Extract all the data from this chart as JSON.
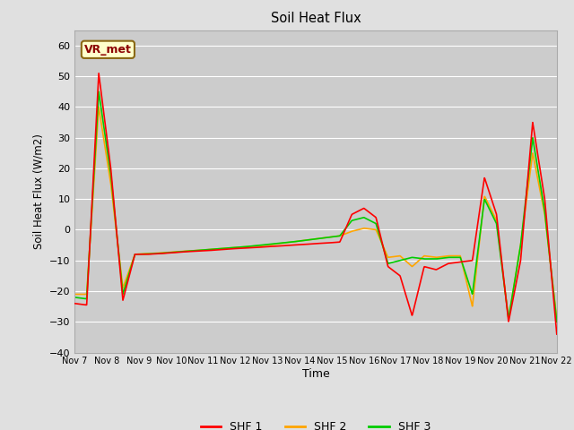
{
  "title": "Soil Heat Flux",
  "ylabel": "Soil Heat Flux (W/m2)",
  "xlabel": "Time",
  "ylim": [
    -40,
    65
  ],
  "yticks": [
    -40,
    -30,
    -20,
    -10,
    0,
    10,
    20,
    30,
    40,
    50,
    60
  ],
  "annotation": "VR_met",
  "fig_bg": "#e0e0e0",
  "plot_bg": "#cccccc",
  "grid_color": "#ffffff",
  "colors": {
    "SHF 1": "#ff0000",
    "SHF 2": "#ffa500",
    "SHF 3": "#00cc00"
  },
  "xtick_labels": [
    "Nov 7",
    "Nov 8",
    "Nov 9",
    "Nov 10",
    "Nov 11",
    "Nov 12",
    "Nov 13",
    "Nov 14",
    "Nov 15",
    "Nov 16",
    "Nov 17",
    "Nov 18",
    "Nov 19",
    "Nov 20",
    "Nov 21",
    "Nov 22"
  ],
  "shf1_pts": [
    -24.0,
    -24.5,
    51.0,
    20.0,
    -23.0,
    -8.0,
    -8.0,
    -7.8,
    -7.5,
    -7.2,
    -7.0,
    -6.8,
    -6.5,
    -6.2,
    -6.0,
    -5.8,
    -5.5,
    -5.3,
    -5.0,
    -4.8,
    -4.5,
    -4.3,
    -4.0,
    5.0,
    7.0,
    4.0,
    -12.0,
    -15.0,
    -28.0,
    -12.0,
    -13.0,
    -11.0,
    -10.5,
    -10.0,
    17.0,
    5.0,
    -30.0,
    -10.0,
    35.0,
    10.0,
    -34.0
  ],
  "shf2_pts": [
    -21.0,
    -21.0,
    40.0,
    15.0,
    -19.0,
    -8.0,
    -7.8,
    -7.6,
    -7.3,
    -7.0,
    -6.8,
    -6.5,
    -6.2,
    -5.9,
    -5.6,
    -5.3,
    -5.0,
    -4.5,
    -4.0,
    -3.5,
    -3.0,
    -2.5,
    -2.0,
    -0.5,
    0.5,
    0.0,
    -9.0,
    -8.5,
    -12.0,
    -8.5,
    -9.0,
    -8.5,
    -8.5,
    -25.0,
    11.0,
    3.0,
    -29.0,
    -5.0,
    25.0,
    5.0,
    -29.0
  ],
  "shf3_pts": [
    -22.0,
    -22.5,
    45.0,
    18.0,
    -21.0,
    -8.0,
    -7.9,
    -7.7,
    -7.4,
    -7.1,
    -6.8,
    -6.5,
    -6.2,
    -5.9,
    -5.6,
    -5.2,
    -4.8,
    -4.4,
    -4.0,
    -3.5,
    -3.0,
    -2.5,
    -2.0,
    3.0,
    4.0,
    2.0,
    -11.0,
    -10.0,
    -9.0,
    -9.5,
    -9.5,
    -9.0,
    -9.0,
    -21.0,
    10.0,
    2.0,
    -29.0,
    -5.0,
    30.0,
    6.0,
    -30.0
  ],
  "linewidth": 1.2
}
